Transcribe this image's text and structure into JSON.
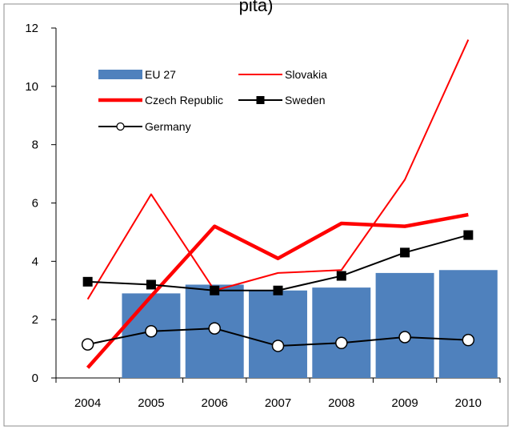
{
  "chart_data": {
    "type": "bar",
    "title": "pita)",
    "categories": [
      "2004",
      "2005",
      "2006",
      "2007",
      "2008",
      "2009",
      "2010"
    ],
    "ylim": [
      0,
      12
    ],
    "yticks": [
      "0",
      "2",
      "4",
      "6",
      "8",
      "10",
      "12"
    ],
    "grid": false,
    "legend_position": "top-left",
    "series": [
      {
        "name": "EU 27",
        "type": "bar",
        "color": "#4f81bd",
        "values": [
          null,
          2.9,
          3.2,
          3.0,
          3.1,
          3.6,
          3.7
        ]
      },
      {
        "name": "Slovakia",
        "type": "line",
        "color": "#ff0000",
        "style": "thin",
        "values": [
          2.7,
          6.3,
          3.0,
          3.6,
          3.7,
          6.8,
          11.6
        ]
      },
      {
        "name": "Czech Republic",
        "type": "line",
        "color": "#ff0000",
        "style": "thick",
        "values": [
          0.35,
          2.8,
          5.2,
          4.1,
          5.3,
          5.2,
          5.6
        ]
      },
      {
        "name": "Sweden",
        "type": "line",
        "color": "#000000",
        "marker": "square",
        "values": [
          3.3,
          3.2,
          3.0,
          3.0,
          3.5,
          4.3,
          4.9
        ]
      },
      {
        "name": "Germany",
        "type": "line",
        "color": "#000000",
        "marker": "circle",
        "values": [
          1.15,
          1.6,
          1.7,
          1.1,
          1.2,
          1.4,
          1.3
        ]
      }
    ]
  }
}
